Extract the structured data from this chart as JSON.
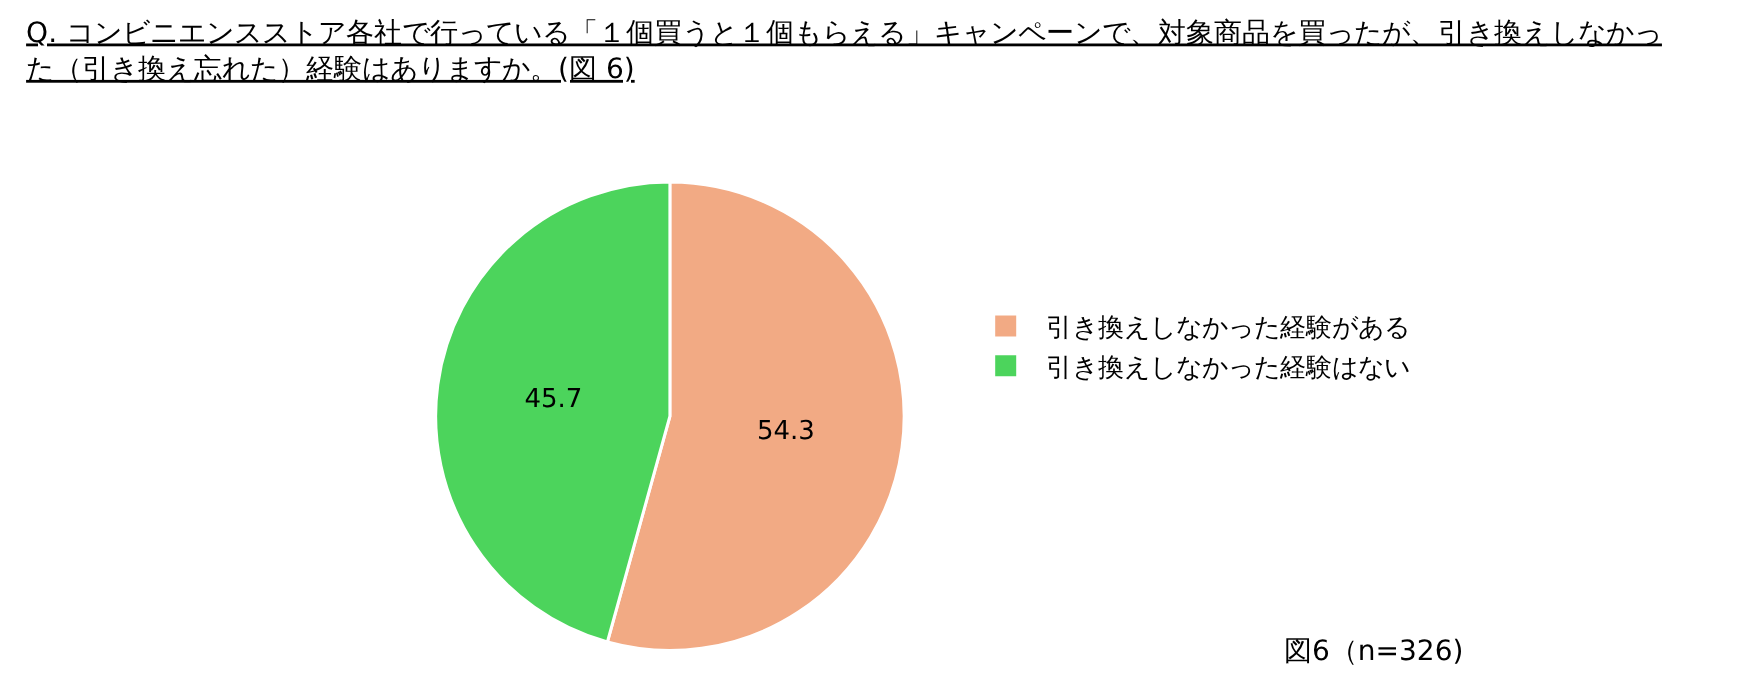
{
  "chart_data": {
    "type": "pie",
    "title": "Q. コンビニエンスストア各社で行っている「１個買うと１個もらえる」キャンペーンで、対象商品を買ったが、引き換えしなかった（引き換え忘れた）経験はありますか。(図 6)",
    "categories": [
      "引き換えしなかった経験がある",
      "引き換えしなかった経験はない"
    ],
    "values": [
      54.3,
      45.7
    ],
    "colors": [
      "#f2aa84",
      "#4cd45c"
    ],
    "data_labels": true,
    "legend": "right",
    "annotations": [
      "図6（n=326)"
    ]
  }
}
